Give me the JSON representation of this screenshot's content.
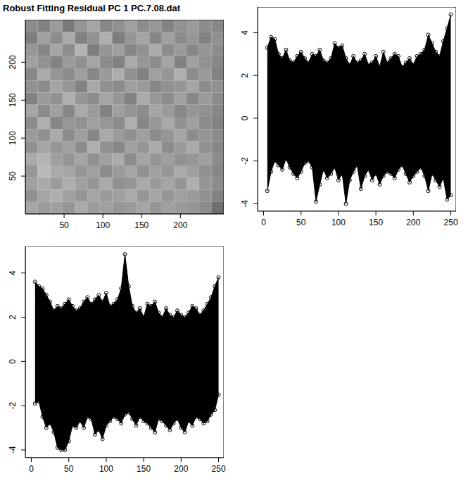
{
  "chart_data": [
    {
      "type": "heatmap",
      "title": "Robust Fitting Residual PC 1 PC.7.08.dat",
      "xlim": [
        0,
        256
      ],
      "ylim": [
        0,
        256
      ],
      "xticks": [
        50,
        100,
        150,
        200
      ],
      "yticks": [
        50,
        100,
        150,
        200
      ],
      "cells": [
        [
          140,
          130,
          155,
          120,
          150,
          165,
          135,
          145,
          160,
          140,
          150,
          130,
          145,
          155,
          140,
          135
        ],
        [
          125,
          160,
          140,
          170,
          130,
          145,
          175,
          125,
          150,
          165,
          135,
          160,
          140,
          150,
          130,
          145
        ],
        [
          150,
          135,
          165,
          140,
          180,
          125,
          150,
          160,
          135,
          145,
          170,
          140,
          155,
          135,
          150,
          140
        ],
        [
          160,
          145,
          130,
          155,
          145,
          165,
          140,
          130,
          170,
          150,
          140,
          165,
          130,
          160,
          145,
          135
        ],
        [
          135,
          170,
          150,
          140,
          160,
          135,
          155,
          175,
          145,
          130,
          160,
          150,
          175,
          140,
          155,
          130
        ],
        [
          145,
          140,
          165,
          150,
          130,
          170,
          145,
          140,
          160,
          155,
          135,
          145,
          150,
          165,
          140,
          145
        ],
        [
          130,
          155,
          145,
          175,
          150,
          140,
          165,
          150,
          130,
          170,
          150,
          140,
          160,
          135,
          155,
          140
        ],
        [
          165,
          140,
          160,
          135,
          170,
          155,
          130,
          160,
          150,
          140,
          165,
          155,
          135,
          150,
          145,
          135
        ],
        [
          140,
          175,
          135,
          150,
          145,
          160,
          150,
          140,
          175,
          135,
          150,
          170,
          145,
          160,
          140,
          130
        ],
        [
          155,
          145,
          170,
          140,
          160,
          135,
          170,
          155,
          145,
          160,
          140,
          150,
          165,
          140,
          150,
          140
        ],
        [
          145,
          165,
          150,
          160,
          140,
          175,
          145,
          135,
          160,
          150,
          170,
          140,
          155,
          170,
          145,
          135
        ],
        [
          170,
          180,
          160,
          150,
          165,
          145,
          160,
          170,
          140,
          165,
          150,
          160,
          145,
          150,
          160,
          140
        ],
        [
          150,
          185,
          170,
          165,
          150,
          160,
          140,
          155,
          165,
          145,
          160,
          150,
          170,
          160,
          145,
          135
        ],
        [
          160,
          170,
          155,
          175,
          160,
          150,
          170,
          145,
          150,
          170,
          155,
          165,
          150,
          175,
          150,
          140
        ],
        [
          145,
          165,
          175,
          160,
          150,
          165,
          155,
          160,
          170,
          150,
          165,
          150,
          160,
          155,
          145,
          130
        ],
        [
          165,
          155,
          160,
          150,
          170,
          155,
          160,
          150,
          155,
          165,
          150,
          160,
          155,
          150,
          140,
          110
        ]
      ]
    },
    {
      "type": "scatter",
      "color": "#000000",
      "marker": "circle",
      "xlim": [
        -8,
        257
      ],
      "ylim": [
        -4.35,
        5.2
      ],
      "xticks": [
        0,
        50,
        100,
        150,
        200,
        250
      ],
      "yticks": [
        -4,
        -2,
        0,
        2,
        4
      ],
      "x": [
        5,
        10,
        15,
        20,
        25,
        30,
        35,
        40,
        45,
        50,
        55,
        60,
        65,
        70,
        75,
        80,
        85,
        90,
        95,
        100,
        105,
        110,
        115,
        120,
        125,
        130,
        135,
        140,
        145,
        150,
        155,
        160,
        165,
        170,
        175,
        180,
        185,
        190,
        195,
        200,
        205,
        210,
        215,
        220,
        225,
        230,
        235,
        240,
        245,
        250
      ],
      "high": [
        3.3,
        3.8,
        3.7,
        3.0,
        2.8,
        3.2,
        2.7,
        2.6,
        2.9,
        3.1,
        2.8,
        2.6,
        3.0,
        2.9,
        3.2,
        2.7,
        2.6,
        2.8,
        3.5,
        3.3,
        3.4,
        2.8,
        2.5,
        2.9,
        2.6,
        2.7,
        3.0,
        2.5,
        2.6,
        2.9,
        2.4,
        3.1,
        2.6,
        2.8,
        3.0,
        2.9,
        2.4,
        2.6,
        2.8,
        2.5,
        2.9,
        3.0,
        3.2,
        3.9,
        3.5,
        3.1,
        2.9,
        3.6,
        4.2,
        4.85
      ],
      "low": [
        -3.4,
        -2.5,
        -2.0,
        -2.2,
        -2.4,
        -1.9,
        -2.3,
        -2.6,
        -2.8,
        -2.5,
        -2.1,
        -2.0,
        -2.3,
        -3.9,
        -3.1,
        -2.4,
        -2.8,
        -2.6,
        -2.3,
        -2.9,
        -2.6,
        -4.0,
        -2.9,
        -2.5,
        -2.2,
        -3.3,
        -2.7,
        -2.4,
        -2.9,
        -2.6,
        -3.1,
        -2.7,
        -2.5,
        -2.6,
        -2.8,
        -2.4,
        -2.2,
        -2.6,
        -3.0,
        -2.7,
        -2.5,
        -2.3,
        -2.7,
        -3.4,
        -2.6,
        -2.9,
        -3.2,
        -2.8,
        -3.8,
        -3.6
      ]
    },
    {
      "type": "scatter",
      "color": "#000000",
      "marker": "circle",
      "xlim": [
        -8,
        257
      ],
      "ylim": [
        -4.35,
        5.2
      ],
      "xticks": [
        0,
        50,
        100,
        150,
        200,
        250
      ],
      "yticks": [
        -4,
        -2,
        0,
        2,
        4
      ],
      "x": [
        5,
        10,
        15,
        20,
        25,
        30,
        35,
        40,
        45,
        50,
        55,
        60,
        65,
        70,
        75,
        80,
        85,
        90,
        95,
        100,
        105,
        110,
        115,
        120,
        125,
        130,
        135,
        140,
        145,
        150,
        155,
        160,
        165,
        170,
        175,
        180,
        185,
        190,
        195,
        200,
        205,
        210,
        215,
        220,
        225,
        230,
        235,
        240,
        245,
        250
      ],
      "high": [
        3.6,
        3.4,
        3.3,
        3.0,
        2.7,
        2.3,
        2.5,
        2.4,
        2.6,
        2.8,
        2.5,
        2.3,
        2.4,
        2.7,
        2.9,
        2.6,
        2.8,
        3.0,
        2.7,
        3.1,
        2.5,
        2.6,
        2.8,
        3.3,
        4.85,
        3.4,
        2.5,
        2.2,
        2.4,
        2.0,
        2.6,
        2.5,
        2.7,
        2.2,
        2.0,
        2.4,
        2.1,
        2.0,
        2.3,
        2.1,
        2.0,
        2.2,
        2.5,
        2.4,
        2.1,
        2.3,
        2.6,
        2.9,
        3.4,
        3.8
      ],
      "low": [
        -1.9,
        -1.8,
        -2.5,
        -3.0,
        -2.8,
        -3.2,
        -3.9,
        -4.0,
        -4.0,
        -3.6,
        -2.9,
        -3.0,
        -2.7,
        -3.0,
        -2.5,
        -2.6,
        -3.3,
        -3.1,
        -3.5,
        -2.9,
        -2.7,
        -2.5,
        -2.6,
        -2.8,
        -2.4,
        -2.3,
        -2.6,
        -2.9,
        -2.5,
        -2.7,
        -2.8,
        -3.0,
        -3.2,
        -2.6,
        -2.7,
        -2.9,
        -3.1,
        -2.8,
        -2.6,
        -3.0,
        -3.2,
        -2.7,
        -2.9,
        -2.5,
        -2.6,
        -2.8,
        -2.7,
        -2.4,
        -2.2,
        -1.5
      ]
    }
  ]
}
